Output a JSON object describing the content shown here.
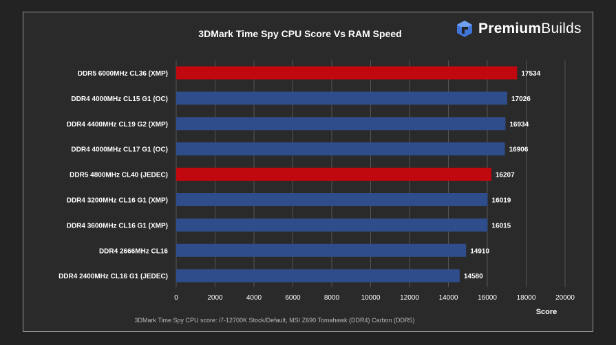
{
  "brand": {
    "name_bold": "Premium",
    "name_regular": "Builds",
    "logo_icon": "premiumbuilds-logo-icon"
  },
  "colors": {
    "ddr5": "#c0080e",
    "ddr4": "#2f4d8a",
    "grid": "#555555",
    "text": "#ffffff",
    "footer": "#b8b8b8"
  },
  "chart_data": {
    "type": "bar",
    "orientation": "horizontal",
    "title": "3DMark Time Spy CPU Score Vs RAM Speed",
    "xlabel": "Score",
    "ylabel": "",
    "xlim": [
      0,
      20000
    ],
    "xticks": [
      0,
      2000,
      4000,
      6000,
      8000,
      10000,
      12000,
      14000,
      16000,
      18000,
      20000
    ],
    "grid": true,
    "categories": [
      "DDR5 6000MHz CL36 (XMP)",
      "DDR4 4000MHz CL15 G1 (OC)",
      "DDR4 4400MHz CL19 G2 (XMP)",
      "DDR4 4000MHz CL17 G1 (OC)",
      "DDR5 4800MHz CL40 (JEDEC)",
      "DDR4 3200MHz CL16 G1 (XMP)",
      "DDR4 3600MHz CL16 G1 (XMP)",
      "DDR4 2666MHz CL16",
      "DDR4 2400MHz CL16 G1 (JEDEC)"
    ],
    "values": [
      17534,
      17026,
      16934,
      16906,
      16207,
      16019,
      16015,
      14910,
      14580
    ],
    "memory_type": [
      "DDR5",
      "DDR4",
      "DDR4",
      "DDR4",
      "DDR5",
      "DDR4",
      "DDR4",
      "DDR4",
      "DDR4"
    ],
    "footnote": "3DMark Time Spy CPU score: i7-12700K Stock/Default, MSI Z690 Tomahawk (DDR4) Carbon (DDR5)"
  }
}
